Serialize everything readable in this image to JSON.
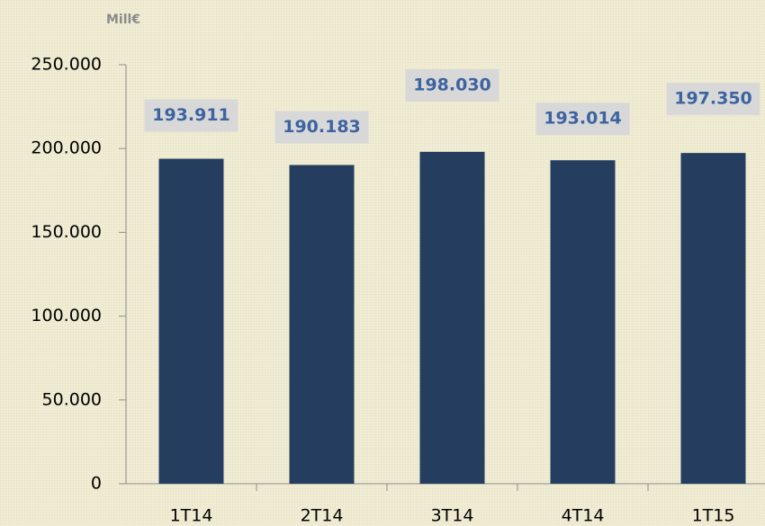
{
  "chart_data": {
    "type": "bar",
    "y_label": "Mill€",
    "categories": [
      "1T14",
      "2T14",
      "3T14",
      "4T14",
      "1T15"
    ],
    "values": [
      193911,
      190183,
      198030,
      193014,
      197350
    ],
    "value_labels": [
      "193.911",
      "190.183",
      "198.030",
      "193.014",
      "197.350"
    ],
    "color": "#253e60",
    "ylim": [
      0,
      250000
    ],
    "yticks": [
      0,
      {
        "value": 50000,
        "label": "50.000"
      },
      {
        "value": 100000,
        "label": "100.000"
      },
      {
        "value": 150000,
        "label": "150.000"
      },
      {
        "value": 200000,
        "label": "200.000"
      },
      {
        "value": 250000,
        "label": "250.000"
      }
    ],
    "grid": false
  }
}
